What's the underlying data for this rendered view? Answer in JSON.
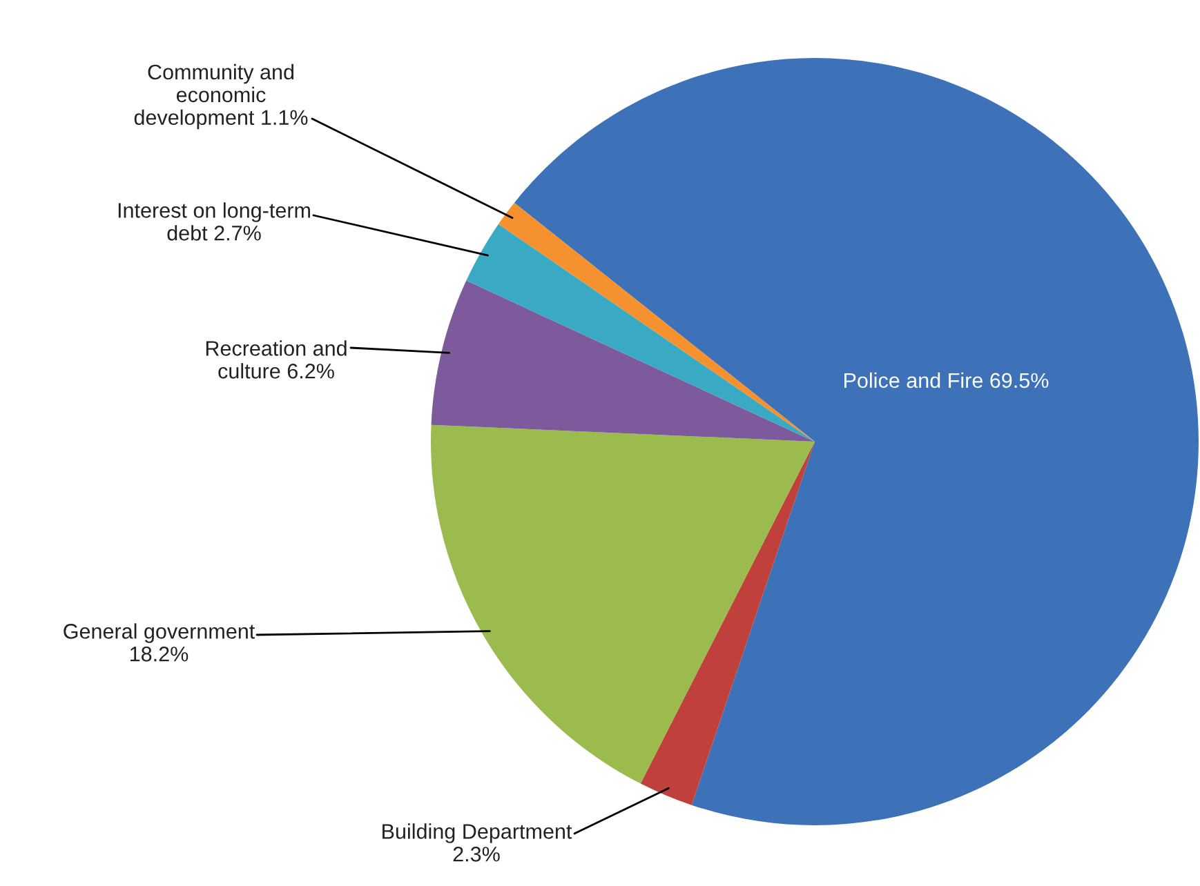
{
  "chart_data": {
    "type": "pie",
    "categories": [
      "Police and Fire",
      "Building Department",
      "General government",
      "Recreation and culture",
      "Interest on long-term debt",
      "Community and economic development"
    ],
    "values": [
      69.5,
      2.3,
      18.2,
      6.2,
      2.7,
      1.1
    ],
    "colors": [
      "#3d72b9",
      "#c0413b",
      "#9cbb4f",
      "#7d5a9c",
      "#3aaac4",
      "#f5922f"
    ],
    "value_labels": [
      "69.5%",
      "2.3%",
      "18.2%",
      "6.2%",
      "2.7%",
      "1.1%"
    ]
  }
}
